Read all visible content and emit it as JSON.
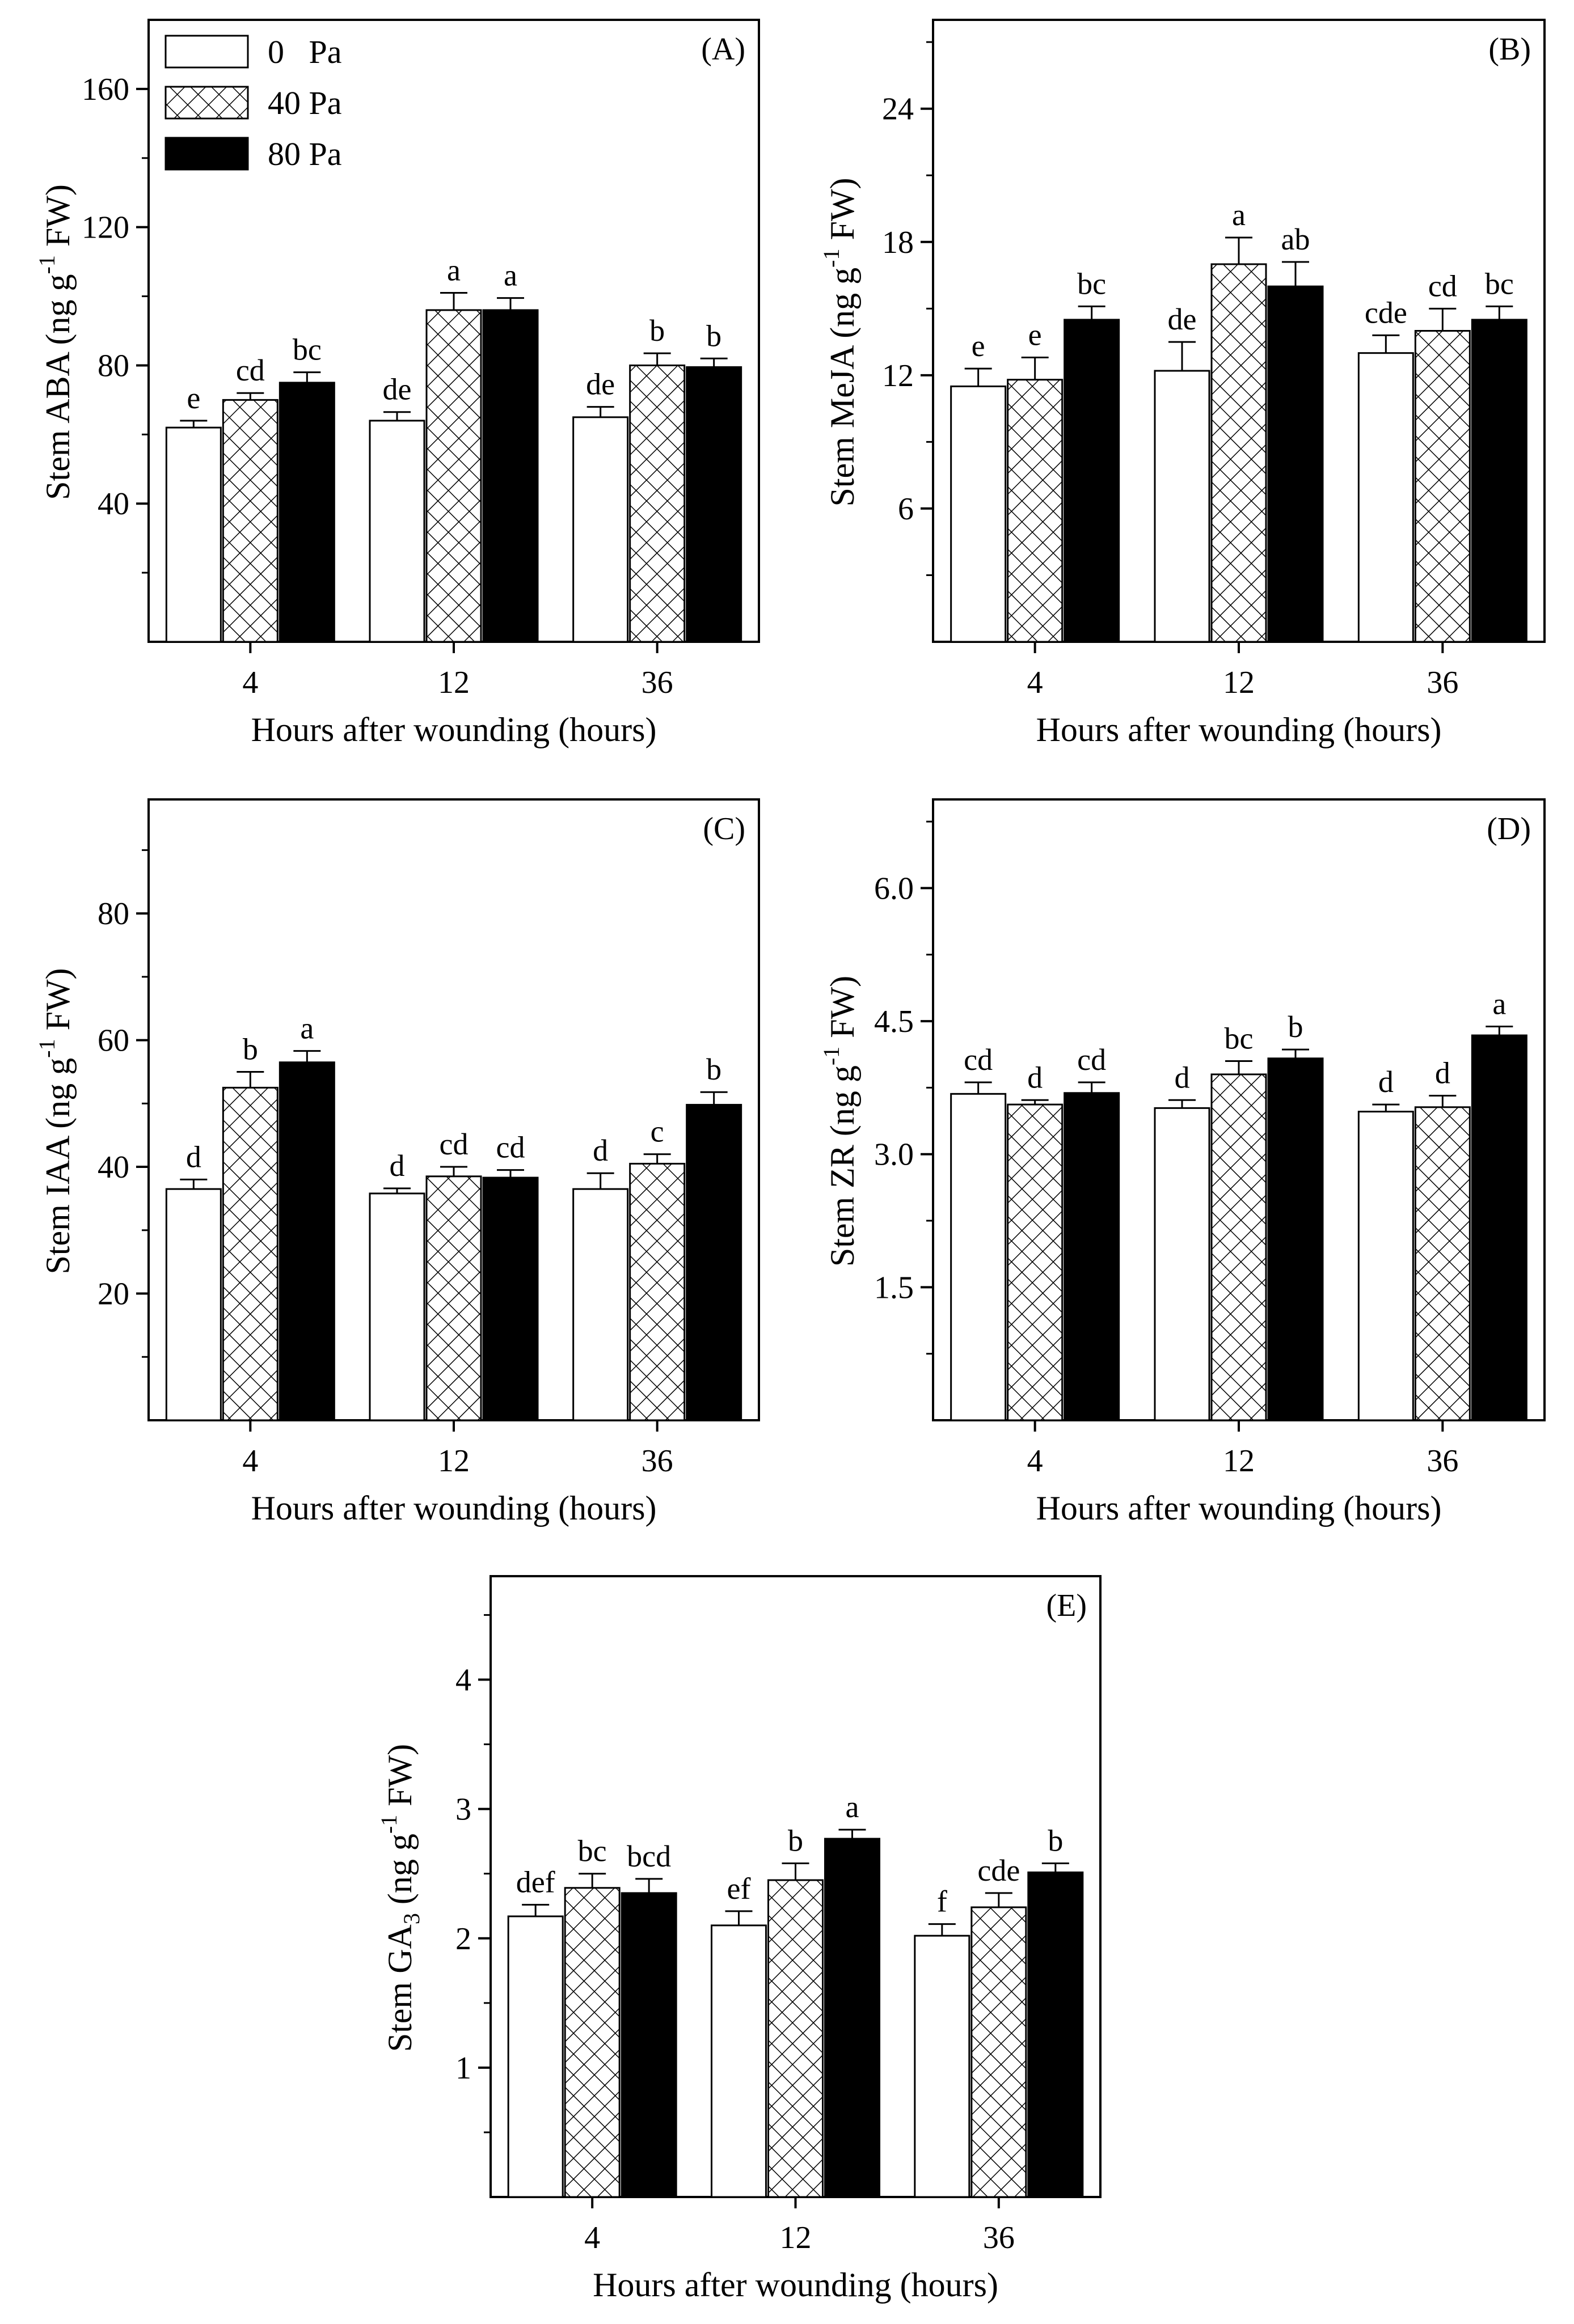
{
  "figure": {
    "x_axis_title": "Hours after wounding (hours)",
    "categories": [
      "4",
      "12",
      "36"
    ],
    "series_names": [
      "0   Pa",
      "40 Pa",
      "80 Pa"
    ],
    "series_fills": [
      "white",
      "crosshatch",
      "black"
    ]
  },
  "chart_data": [
    {
      "type": "bar",
      "panel": "(A)",
      "ylabel_main": "Stem ABA (ng g",
      "ylabel_sup": "-1",
      "ylabel_tail": " FW)",
      "categories": [
        "4",
        "12",
        "36"
      ],
      "ylim": [
        0,
        180
      ],
      "yticks": [
        40,
        80,
        120,
        160
      ],
      "yticks_minor": [
        20,
        60,
        100,
        140,
        180
      ],
      "series": [
        {
          "name": "0   Pa",
          "values": [
            62,
            64,
            65
          ],
          "errors": [
            2,
            2.5,
            3
          ],
          "letters": [
            "e",
            "de",
            "de"
          ]
        },
        {
          "name": "40 Pa",
          "values": [
            70,
            96,
            80
          ],
          "errors": [
            2,
            5,
            3.5
          ],
          "letters": [
            "cd",
            "a",
            "b"
          ]
        },
        {
          "name": "80 Pa",
          "values": [
            75,
            96,
            79.5
          ],
          "errors": [
            3,
            3.5,
            2.5
          ],
          "letters": [
            "bc",
            "a",
            "b"
          ]
        }
      ],
      "xlabel": "Hours after wounding (hours)",
      "legend": "top-left"
    },
    {
      "type": "bar",
      "panel": "(B)",
      "ylabel_main": "Stem MeJA (ng g",
      "ylabel_sup": "-1",
      "ylabel_tail": " FW)",
      "categories": [
        "4",
        "12",
        "36"
      ],
      "ylim": [
        0,
        28
      ],
      "yticks": [
        6,
        12,
        18,
        24
      ],
      "yticks_minor": [
        3,
        9,
        15,
        21,
        27
      ],
      "series": [
        {
          "name": "0   Pa",
          "values": [
            11.5,
            12.2,
            13
          ],
          "errors": [
            0.8,
            1.3,
            0.8
          ],
          "letters": [
            "e",
            "de",
            "cde"
          ]
        },
        {
          "name": "40 Pa",
          "values": [
            11.8,
            17,
            14
          ],
          "errors": [
            1,
            1.2,
            1
          ],
          "letters": [
            "e",
            "a",
            "cd"
          ]
        },
        {
          "name": "80 Pa",
          "values": [
            14.5,
            16,
            14.5
          ],
          "errors": [
            0.6,
            1.1,
            0.6
          ],
          "letters": [
            "bc",
            "ab",
            "bc"
          ]
        }
      ],
      "xlabel": "Hours after wounding (hours)"
    },
    {
      "type": "bar",
      "panel": "(C)",
      "ylabel_main": "Stem IAA (ng g",
      "ylabel_sup": "-1",
      "ylabel_tail": " FW)",
      "categories": [
        "4",
        "12",
        "36"
      ],
      "ylim": [
        0,
        98
      ],
      "yticks": [
        20,
        40,
        60,
        80
      ],
      "yticks_minor": [
        10,
        30,
        50,
        70,
        90
      ],
      "series": [
        {
          "name": "0   Pa",
          "values": [
            36.5,
            35.8,
            36.5
          ],
          "errors": [
            1.5,
            0.8,
            2.5
          ],
          "letters": [
            "d",
            "d",
            "d"
          ]
        },
        {
          "name": "40 Pa",
          "values": [
            52.5,
            38.5,
            40.5
          ],
          "errors": [
            2.5,
            1.5,
            1.5
          ],
          "letters": [
            "b",
            "cd",
            "c"
          ]
        },
        {
          "name": "80 Pa",
          "values": [
            56.5,
            38.3,
            49.8
          ],
          "errors": [
            1.8,
            1.2,
            2
          ],
          "letters": [
            "a",
            "cd",
            "b"
          ]
        }
      ],
      "xlabel": "Hours after wounding (hours)"
    },
    {
      "type": "bar",
      "panel": "(D)",
      "ylabel_main": "Stem ZR (ng g",
      "ylabel_sup": "-1",
      "ylabel_tail": " FW)",
      "categories": [
        "4",
        "12",
        "36"
      ],
      "ylim": [
        0,
        7
      ],
      "yticks": [
        1.5,
        3.0,
        4.5,
        6.0
      ],
      "yticks_labels": [
        "1.5",
        "3.0",
        "4.5",
        "6.0"
      ],
      "yticks_minor": [
        0.75,
        2.25,
        3.75,
        5.25,
        6.75
      ],
      "series": [
        {
          "name": "0   Pa",
          "values": [
            3.68,
            3.52,
            3.48
          ],
          "errors": [
            0.13,
            0.09,
            0.08
          ],
          "letters": [
            "cd",
            "d",
            "d"
          ]
        },
        {
          "name": "40 Pa",
          "values": [
            3.56,
            3.9,
            3.53
          ],
          "errors": [
            0.05,
            0.15,
            0.13
          ],
          "letters": [
            "d",
            "bc",
            "d"
          ]
        },
        {
          "name": "80 Pa",
          "values": [
            3.69,
            4.08,
            4.34
          ],
          "errors": [
            0.12,
            0.1,
            0.1
          ],
          "letters": [
            "cd",
            "b",
            "a"
          ]
        }
      ],
      "xlabel": "Hours after wounding (hours)"
    },
    {
      "type": "bar",
      "panel": "(E)",
      "ylabel_main": "Stem GA",
      "ylabel_sub": "3",
      "ylabel_mid": " (ng g",
      "ylabel_sup": "-1",
      "ylabel_tail": " FW)",
      "categories": [
        "4",
        "12",
        "36"
      ],
      "ylim": [
        0,
        4.8
      ],
      "yticks": [
        1,
        2,
        3,
        4
      ],
      "yticks_minor": [
        0.5,
        1.5,
        2.5,
        3.5,
        4.5
      ],
      "series": [
        {
          "name": "0   Pa",
          "values": [
            2.17,
            2.1,
            2.02
          ],
          "errors": [
            0.09,
            0.11,
            0.09
          ],
          "letters": [
            "def",
            "ef",
            "f"
          ]
        },
        {
          "name": "40 Pa",
          "values": [
            2.39,
            2.45,
            2.24
          ],
          "errors": [
            0.11,
            0.13,
            0.11
          ],
          "letters": [
            "bc",
            "b",
            "cde"
          ]
        },
        {
          "name": "80 Pa",
          "values": [
            2.35,
            2.77,
            2.51
          ],
          "errors": [
            0.11,
            0.07,
            0.07
          ],
          "letters": [
            "bcd",
            "a",
            "b"
          ]
        }
      ],
      "xlabel": "Hours after wounding (hours)"
    }
  ]
}
